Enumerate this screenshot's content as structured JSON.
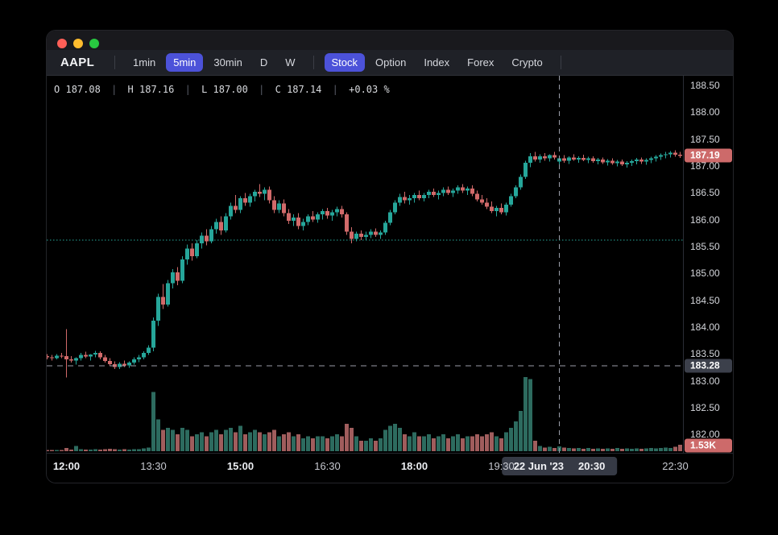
{
  "window": {
    "title": ""
  },
  "toolbar": {
    "symbol": "AAPL",
    "timeframes": [
      {
        "label": "1min",
        "active": false
      },
      {
        "label": "5min",
        "active": true
      },
      {
        "label": "30min",
        "active": false
      },
      {
        "label": "D",
        "active": false
      },
      {
        "label": "W",
        "active": false
      }
    ],
    "markets": [
      {
        "label": "Stock",
        "active": true
      },
      {
        "label": "Option",
        "active": false
      },
      {
        "label": "Index",
        "active": false
      },
      {
        "label": "Forex",
        "active": false
      },
      {
        "label": "Crypto",
        "active": false
      }
    ]
  },
  "legend": {
    "open_label": "O",
    "open": "187.08",
    "high_label": "H",
    "high": "187.16",
    "low_label": "L",
    "low": "187.00",
    "close_label": "C",
    "close": "187.14",
    "change": "+0.03 %",
    "separator": "|"
  },
  "chart_data": {
    "type": "candlestick+volume",
    "symbol": "AAPL",
    "interval": "5min",
    "start_time": "11:40",
    "step_minutes": 5,
    "price_axis": {
      "min": 182.0,
      "max": 188.5,
      "step": 0.5,
      "top_price_y_anchor": 188.5
    },
    "price_ticks": [
      {
        "value": 188.5,
        "label": "188.50"
      },
      {
        "value": 188.0,
        "label": "188.00"
      },
      {
        "value": 187.5,
        "label": "187.50"
      },
      {
        "value": 187.0,
        "label": "187.00"
      },
      {
        "value": 186.5,
        "label": "186.50"
      },
      {
        "value": 186.0,
        "label": "186.00"
      },
      {
        "value": 185.5,
        "label": "185.50"
      },
      {
        "value": 185.0,
        "label": "185.00"
      },
      {
        "value": 184.5,
        "label": "184.50"
      },
      {
        "value": 184.0,
        "label": "184.00"
      },
      {
        "value": 183.5,
        "label": "183.50"
      },
      {
        "value": 183.0,
        "label": "183.00"
      },
      {
        "value": 182.5,
        "label": "182.50"
      },
      {
        "value": 182.0,
        "label": "182.00"
      }
    ],
    "time_ticks": [
      {
        "index": 4,
        "label": "12:00",
        "major": true
      },
      {
        "index": 22,
        "label": "13:30",
        "major": false
      },
      {
        "index": 40,
        "label": "15:00",
        "major": true
      },
      {
        "index": 58,
        "label": "16:30",
        "major": false
      },
      {
        "index": 76,
        "label": "18:00",
        "major": true
      },
      {
        "index": 94,
        "label": "19:30",
        "major": false
      },
      {
        "index": 130,
        "label": "22:30",
        "major": false
      }
    ],
    "baseline_price": 185.62,
    "crosshair": {
      "price_value": 183.28,
      "price_label": "183.28",
      "candle_index": 106,
      "date_label": "22 Jun '23",
      "time_label": "20:30"
    },
    "last_price": {
      "value": 187.19,
      "label": "187.19",
      "direction": "down"
    },
    "volume_badge": "1.53K",
    "volume_scale_max": 17.5,
    "colors": {
      "up": "#26a69a",
      "down": "#d16a6a",
      "vol_up": "#2d6b5f",
      "vol_down": "#a05d5d",
      "crosshair": "#9a9da8",
      "baseline": "#26a69a",
      "accent": "#4c52d9",
      "badge_down": "#cd6a6a",
      "badge_neutral": "#3c404b"
    },
    "candles": [
      [
        183.46,
        183.5,
        183.4,
        183.44,
        0.3
      ],
      [
        183.44,
        183.48,
        183.38,
        183.42,
        0.25
      ],
      [
        183.42,
        183.5,
        183.4,
        183.47,
        0.3
      ],
      [
        183.47,
        183.52,
        183.42,
        183.45,
        0.3
      ],
      [
        183.46,
        183.96,
        183.06,
        183.4,
        0.8
      ],
      [
        183.4,
        183.46,
        183.34,
        183.38,
        0.4
      ],
      [
        183.38,
        183.44,
        183.3,
        183.42,
        1.2
      ],
      [
        183.42,
        183.52,
        183.38,
        183.48,
        0.5
      ],
      [
        183.48,
        183.54,
        183.42,
        183.45,
        0.4
      ],
      [
        183.45,
        183.5,
        183.38,
        183.49,
        0.4
      ],
      [
        183.49,
        183.56,
        183.44,
        183.52,
        0.5
      ],
      [
        183.52,
        183.55,
        183.4,
        183.44,
        0.4
      ],
      [
        183.44,
        183.48,
        183.34,
        183.37,
        0.5
      ],
      [
        183.37,
        183.42,
        183.28,
        183.31,
        0.6
      ],
      [
        183.31,
        183.36,
        183.22,
        183.26,
        0.5
      ],
      [
        183.26,
        183.35,
        183.22,
        183.32,
        0.4
      ],
      [
        183.32,
        183.38,
        183.26,
        183.29,
        0.5
      ],
      [
        183.29,
        183.36,
        183.24,
        183.34,
        0.4
      ],
      [
        183.34,
        183.44,
        183.3,
        183.4,
        0.5
      ],
      [
        183.4,
        183.48,
        183.35,
        183.44,
        0.5
      ],
      [
        183.44,
        183.55,
        183.4,
        183.52,
        0.7
      ],
      [
        183.52,
        183.66,
        183.48,
        183.62,
        0.9
      ],
      [
        183.62,
        184.18,
        183.55,
        184.12,
        14.0
      ],
      [
        184.12,
        184.62,
        184.02,
        184.56,
        7.5
      ],
      [
        184.56,
        184.8,
        184.34,
        184.42,
        5.0
      ],
      [
        184.42,
        184.88,
        184.38,
        184.82,
        5.5
      ],
      [
        184.82,
        185.08,
        184.72,
        185.02,
        5.0
      ],
      [
        185.02,
        185.12,
        184.78,
        184.86,
        4.0
      ],
      [
        184.86,
        185.32,
        184.82,
        185.26,
        5.5
      ],
      [
        185.26,
        185.54,
        185.16,
        185.46,
        5.0
      ],
      [
        185.46,
        185.56,
        185.24,
        185.32,
        3.5
      ],
      [
        185.32,
        185.62,
        185.28,
        185.56,
        4.0
      ],
      [
        185.56,
        185.76,
        185.46,
        185.7,
        4.5
      ],
      [
        185.7,
        185.82,
        185.52,
        185.6,
        3.5
      ],
      [
        185.6,
        185.88,
        185.56,
        185.82,
        4.5
      ],
      [
        185.82,
        186.02,
        185.74,
        185.96,
        5.0
      ],
      [
        185.96,
        186.06,
        185.72,
        185.8,
        4.0
      ],
      [
        185.8,
        186.12,
        185.76,
        186.06,
        5.0
      ],
      [
        186.06,
        186.32,
        186.0,
        186.26,
        5.5
      ],
      [
        186.26,
        186.46,
        186.12,
        186.18,
        4.5
      ],
      [
        186.18,
        186.44,
        186.12,
        186.4,
        6.0
      ],
      [
        186.4,
        186.5,
        186.26,
        186.32,
        4.0
      ],
      [
        186.32,
        186.48,
        186.24,
        186.44,
        4.5
      ],
      [
        186.44,
        186.56,
        186.34,
        186.52,
        5.0
      ],
      [
        186.52,
        186.66,
        186.42,
        186.48,
        4.5
      ],
      [
        186.48,
        186.6,
        186.36,
        186.56,
        4.0
      ],
      [
        186.56,
        186.62,
        186.3,
        186.36,
        4.5
      ],
      [
        186.36,
        186.44,
        186.12,
        186.18,
        5.0
      ],
      [
        186.18,
        186.36,
        186.12,
        186.3,
        3.5
      ],
      [
        186.3,
        186.38,
        186.06,
        186.12,
        4.0
      ],
      [
        186.12,
        186.2,
        185.92,
        185.98,
        4.5
      ],
      [
        185.98,
        186.1,
        185.88,
        186.04,
        3.5
      ],
      [
        186.04,
        186.12,
        185.82,
        185.88,
        4.0
      ],
      [
        185.88,
        186.02,
        185.8,
        185.96,
        3.0
      ],
      [
        185.96,
        186.1,
        185.9,
        186.06,
        3.5
      ],
      [
        186.06,
        186.16,
        185.96,
        186.0,
        3.0
      ],
      [
        186.0,
        186.14,
        185.94,
        186.1,
        3.5
      ],
      [
        186.1,
        186.2,
        186.0,
        186.16,
        3.5
      ],
      [
        186.16,
        186.22,
        186.02,
        186.08,
        3.0
      ],
      [
        186.08,
        186.18,
        185.98,
        186.14,
        3.5
      ],
      [
        186.14,
        186.24,
        186.06,
        186.2,
        4.0
      ],
      [
        186.2,
        186.26,
        186.04,
        186.1,
        3.5
      ],
      [
        186.1,
        186.14,
        185.72,
        185.78,
        6.5
      ],
      [
        185.78,
        185.86,
        185.56,
        185.64,
        5.5
      ],
      [
        185.64,
        185.78,
        185.6,
        185.74,
        3.5
      ],
      [
        185.74,
        185.8,
        185.62,
        185.68,
        2.5
      ],
      [
        185.68,
        185.78,
        185.62,
        185.72,
        2.5
      ],
      [
        185.72,
        185.82,
        185.66,
        185.78,
        3.0
      ],
      [
        185.78,
        185.84,
        185.68,
        185.72,
        2.5
      ],
      [
        185.72,
        185.8,
        185.64,
        185.76,
        3.0
      ],
      [
        185.76,
        185.98,
        185.72,
        185.94,
        5.0
      ],
      [
        185.94,
        186.18,
        185.9,
        186.14,
        6.0
      ],
      [
        186.14,
        186.36,
        186.1,
        186.32,
        6.5
      ],
      [
        186.32,
        186.48,
        186.26,
        186.42,
        5.5
      ],
      [
        186.42,
        186.52,
        186.3,
        186.36,
        4.0
      ],
      [
        186.36,
        186.46,
        186.28,
        186.4,
        3.5
      ],
      [
        186.4,
        186.5,
        186.32,
        186.46,
        4.5
      ],
      [
        186.46,
        186.54,
        186.36,
        186.4,
        3.5
      ],
      [
        186.4,
        186.5,
        186.34,
        186.46,
        3.5
      ],
      [
        186.46,
        186.56,
        186.4,
        186.52,
        4.0
      ],
      [
        186.52,
        186.58,
        186.42,
        186.46,
        3.0
      ],
      [
        186.46,
        186.54,
        186.38,
        186.5,
        3.5
      ],
      [
        186.5,
        186.6,
        186.44,
        186.56,
        4.0
      ],
      [
        186.56,
        186.62,
        186.46,
        186.5,
        3.0
      ],
      [
        186.5,
        186.58,
        186.42,
        186.54,
        3.5
      ],
      [
        186.54,
        186.64,
        186.48,
        186.6,
        4.0
      ],
      [
        186.6,
        186.66,
        186.5,
        186.54,
        3.0
      ],
      [
        186.54,
        186.62,
        186.46,
        186.58,
        3.5
      ],
      [
        186.58,
        186.64,
        186.44,
        186.48,
        3.5
      ],
      [
        186.48,
        186.54,
        186.34,
        186.38,
        4.0
      ],
      [
        186.38,
        186.46,
        186.28,
        186.32,
        3.5
      ],
      [
        186.32,
        186.4,
        186.2,
        186.24,
        4.0
      ],
      [
        186.24,
        186.34,
        186.12,
        186.16,
        4.5
      ],
      [
        186.16,
        186.26,
        186.06,
        186.22,
        3.5
      ],
      [
        186.22,
        186.3,
        186.1,
        186.14,
        3.0
      ],
      [
        186.14,
        186.32,
        186.08,
        186.28,
        4.5
      ],
      [
        186.28,
        186.48,
        186.24,
        186.44,
        5.5
      ],
      [
        186.44,
        186.64,
        186.4,
        186.6,
        7.0
      ],
      [
        186.6,
        186.84,
        186.56,
        186.8,
        9.5
      ],
      [
        186.8,
        187.1,
        186.76,
        187.06,
        17.5
      ],
      [
        187.06,
        187.24,
        186.98,
        187.18,
        17.0
      ],
      [
        187.18,
        187.26,
        187.08,
        187.12,
        2.5
      ],
      [
        187.12,
        187.22,
        187.06,
        187.18,
        1.2
      ],
      [
        187.18,
        187.24,
        187.1,
        187.14,
        0.9
      ],
      [
        187.14,
        187.22,
        187.08,
        187.2,
        1.0
      ],
      [
        187.2,
        187.26,
        187.12,
        187.16,
        0.8
      ],
      [
        187.08,
        187.16,
        187.0,
        187.14,
        1.1
      ],
      [
        187.14,
        187.2,
        187.06,
        187.1,
        0.9
      ],
      [
        187.1,
        187.18,
        187.04,
        187.16,
        0.8
      ],
      [
        187.16,
        187.22,
        187.1,
        187.12,
        0.7
      ],
      [
        187.12,
        187.18,
        187.06,
        187.15,
        0.8
      ],
      [
        187.15,
        187.21,
        187.09,
        187.11,
        0.6
      ],
      [
        187.11,
        187.17,
        187.05,
        187.14,
        0.8
      ],
      [
        187.14,
        187.18,
        187.06,
        187.09,
        0.6
      ],
      [
        187.09,
        187.15,
        187.03,
        187.12,
        0.7
      ],
      [
        187.12,
        187.16,
        187.04,
        187.07,
        0.6
      ],
      [
        187.07,
        187.13,
        187.01,
        187.1,
        0.7
      ],
      [
        187.1,
        187.14,
        187.02,
        187.05,
        0.6
      ],
      [
        187.05,
        187.11,
        186.99,
        187.08,
        0.8
      ],
      [
        187.08,
        187.12,
        187.0,
        187.03,
        0.6
      ],
      [
        187.03,
        187.09,
        186.97,
        187.06,
        0.7
      ],
      [
        187.06,
        187.12,
        187.0,
        187.09,
        0.6
      ],
      [
        187.09,
        187.15,
        187.03,
        187.12,
        0.7
      ],
      [
        187.12,
        187.16,
        187.04,
        187.08,
        0.6
      ],
      [
        187.08,
        187.14,
        187.02,
        187.11,
        0.7
      ],
      [
        187.11,
        187.17,
        187.05,
        187.14,
        0.8
      ],
      [
        187.14,
        187.2,
        187.08,
        187.17,
        0.7
      ],
      [
        187.17,
        187.23,
        187.11,
        187.2,
        0.8
      ],
      [
        187.2,
        187.26,
        187.14,
        187.22,
        0.9
      ],
      [
        187.22,
        187.28,
        187.16,
        187.25,
        0.8
      ],
      [
        187.25,
        187.29,
        187.17,
        187.21,
        1.0
      ],
      [
        187.21,
        187.26,
        187.15,
        187.19,
        1.53
      ]
    ]
  }
}
